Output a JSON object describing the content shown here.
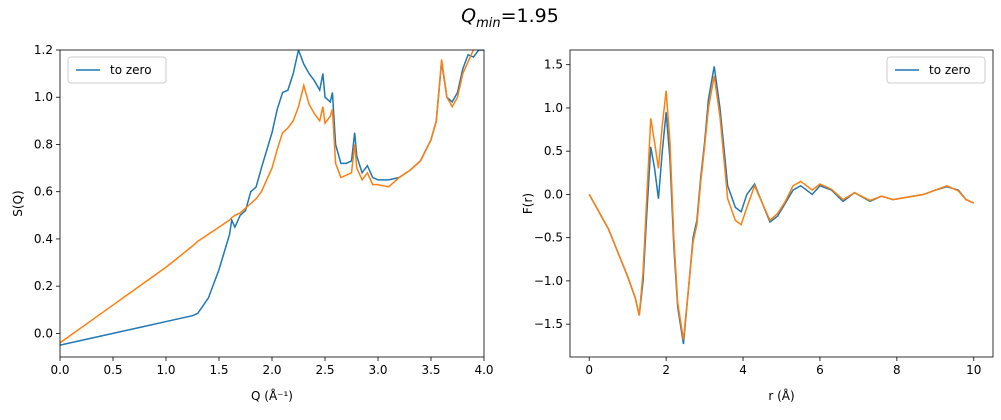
{
  "title": [
    "Q",
    "min",
    "=1.95"
  ],
  "chart_data": [
    {
      "type": "line",
      "xlabel": "Q (Å⁻¹)",
      "ylabel": "S(Q)",
      "legend": "upper left",
      "xlim": [
        0,
        4
      ],
      "ylim": [
        -0.1,
        1.2
      ],
      "xticks": [
        {
          "value": 0,
          "label": "0.0"
        },
        0.5,
        {
          "value": 1,
          "label": "1.0"
        },
        1.5,
        {
          "value": 2,
          "label": "2.0"
        },
        2.5,
        {
          "value": 3,
          "label": "3.0"
        },
        3.5,
        {
          "value": 4,
          "label": "4.0"
        }
      ],
      "yticks": [
        {
          "value": 0,
          "label": "0.0"
        },
        0.2,
        0.4,
        0.6,
        0.8,
        {
          "value": 1,
          "label": "1.0"
        },
        1.2
      ],
      "x": [
        0,
        0.25,
        0.5,
        0.75,
        1.0,
        1.25,
        1.3,
        1.4,
        1.5,
        1.6,
        1.62,
        1.65,
        1.7,
        1.75,
        1.8,
        1.85,
        1.9,
        2.0,
        2.05,
        2.1,
        2.15,
        2.2,
        2.25,
        2.3,
        2.35,
        2.4,
        2.45,
        2.48,
        2.5,
        2.55,
        2.57,
        2.6,
        2.65,
        2.7,
        2.75,
        2.78,
        2.8,
        2.85,
        2.9,
        2.95,
        3.0,
        3.1,
        3.2,
        3.3,
        3.4,
        3.5,
        3.55,
        3.6,
        3.65,
        3.7,
        3.75,
        3.8,
        3.85,
        3.9,
        3.95,
        4.0
      ],
      "series": [
        {
          "name": "to zero",
          "color": "#1f77b4",
          "values": [
            -0.05,
            -0.025,
            0.0,
            0.025,
            0.05,
            0.075,
            0.085,
            0.15,
            0.27,
            0.42,
            0.48,
            0.45,
            0.5,
            0.52,
            0.6,
            0.62,
            0.7,
            0.85,
            0.95,
            1.02,
            1.03,
            1.1,
            1.2,
            1.14,
            1.1,
            1.07,
            1.03,
            1.1,
            1.0,
            0.98,
            1.02,
            0.8,
            0.72,
            0.72,
            0.73,
            0.85,
            0.75,
            0.68,
            0.71,
            0.66,
            0.65,
            0.65,
            0.66,
            0.69,
            0.73,
            0.82,
            0.9,
            1.15,
            1.0,
            0.98,
            1.02,
            1.12,
            1.18,
            1.17,
            1.2,
            1.2
          ]
        },
        {
          "color": "#ff7f0e",
          "values": [
            -0.04,
            0.04,
            0.12,
            0.2,
            0.28,
            0.37,
            0.39,
            0.42,
            0.45,
            0.48,
            0.49,
            0.5,
            0.51,
            0.53,
            0.55,
            0.57,
            0.6,
            0.7,
            0.78,
            0.85,
            0.87,
            0.9,
            0.96,
            1.05,
            0.97,
            0.93,
            0.9,
            0.96,
            0.89,
            0.92,
            0.95,
            0.72,
            0.66,
            0.67,
            0.68,
            0.8,
            0.7,
            0.65,
            0.68,
            0.63,
            0.63,
            0.62,
            0.66,
            0.69,
            0.73,
            0.82,
            0.9,
            1.16,
            1.0,
            0.96,
            1.0,
            1.1,
            1.15,
            1.2,
            1.22,
            1.25
          ]
        }
      ]
    },
    {
      "type": "line",
      "xlabel": "r (Å)",
      "ylabel": "F(r)",
      "legend": "upper right",
      "xlim": [
        -0.5,
        10.5
      ],
      "ylim": [
        -1.88,
        1.67
      ],
      "xticks": [
        0,
        2,
        4,
        6,
        8,
        10
      ],
      "yticks": [
        {
          "value": -1.5,
          "label": "−1.5"
        },
        {
          "value": -1,
          "label": "−1.0"
        },
        {
          "value": -0.5,
          "label": "−0.5"
        },
        {
          "value": 0,
          "label": "0.0"
        },
        0.5,
        {
          "value": 1,
          "label": "1.0"
        },
        1.5
      ],
      "x": [
        0,
        0.5,
        1.0,
        1.2,
        1.3,
        1.4,
        1.5,
        1.6,
        1.7,
        1.8,
        1.9,
        2.0,
        2.1,
        2.2,
        2.3,
        2.45,
        2.6,
        2.7,
        2.8,
        2.9,
        3.0,
        3.1,
        3.25,
        3.4,
        3.6,
        3.8,
        3.95,
        4.1,
        4.3,
        4.5,
        4.7,
        4.9,
        5.1,
        5.3,
        5.5,
        5.8,
        6.0,
        6.3,
        6.6,
        6.9,
        7.3,
        7.6,
        7.9,
        8.3,
        8.7,
        9.0,
        9.3,
        9.6,
        9.8,
        10
      ],
      "series": [
        {
          "name": "to zero",
          "color": "#1f77b4",
          "values": [
            0,
            -0.4,
            -0.95,
            -1.2,
            -1.4,
            -1.0,
            -0.2,
            0.55,
            0.3,
            -0.05,
            0.5,
            0.95,
            0.4,
            -0.6,
            -1.3,
            -1.73,
            -1.0,
            -0.5,
            -0.3,
            0.2,
            0.6,
            1.1,
            1.48,
            1.0,
            0.1,
            -0.15,
            -0.2,
            0.0,
            0.12,
            -0.1,
            -0.32,
            -0.25,
            -0.1,
            0.05,
            0.1,
            0.0,
            0.1,
            0.05,
            -0.08,
            0.02,
            -0.08,
            -0.02,
            -0.06,
            -0.03,
            0.0,
            0.05,
            0.09,
            0.05,
            -0.06,
            -0.1
          ]
        },
        {
          "color": "#ff7f0e",
          "values": [
            0,
            -0.4,
            -0.95,
            -1.2,
            -1.4,
            -0.9,
            0.0,
            0.88,
            0.6,
            0.3,
            0.8,
            1.2,
            0.6,
            -0.5,
            -1.25,
            -1.68,
            -1.0,
            -0.55,
            -0.35,
            0.15,
            0.55,
            1.0,
            1.37,
            0.9,
            -0.05,
            -0.3,
            -0.35,
            -0.15,
            0.1,
            -0.1,
            -0.3,
            -0.22,
            -0.08,
            0.1,
            0.15,
            0.05,
            0.12,
            0.06,
            -0.06,
            0.02,
            -0.07,
            -0.02,
            -0.06,
            -0.03,
            0.0,
            0.05,
            0.1,
            0.04,
            -0.06,
            -0.1
          ]
        }
      ]
    }
  ]
}
